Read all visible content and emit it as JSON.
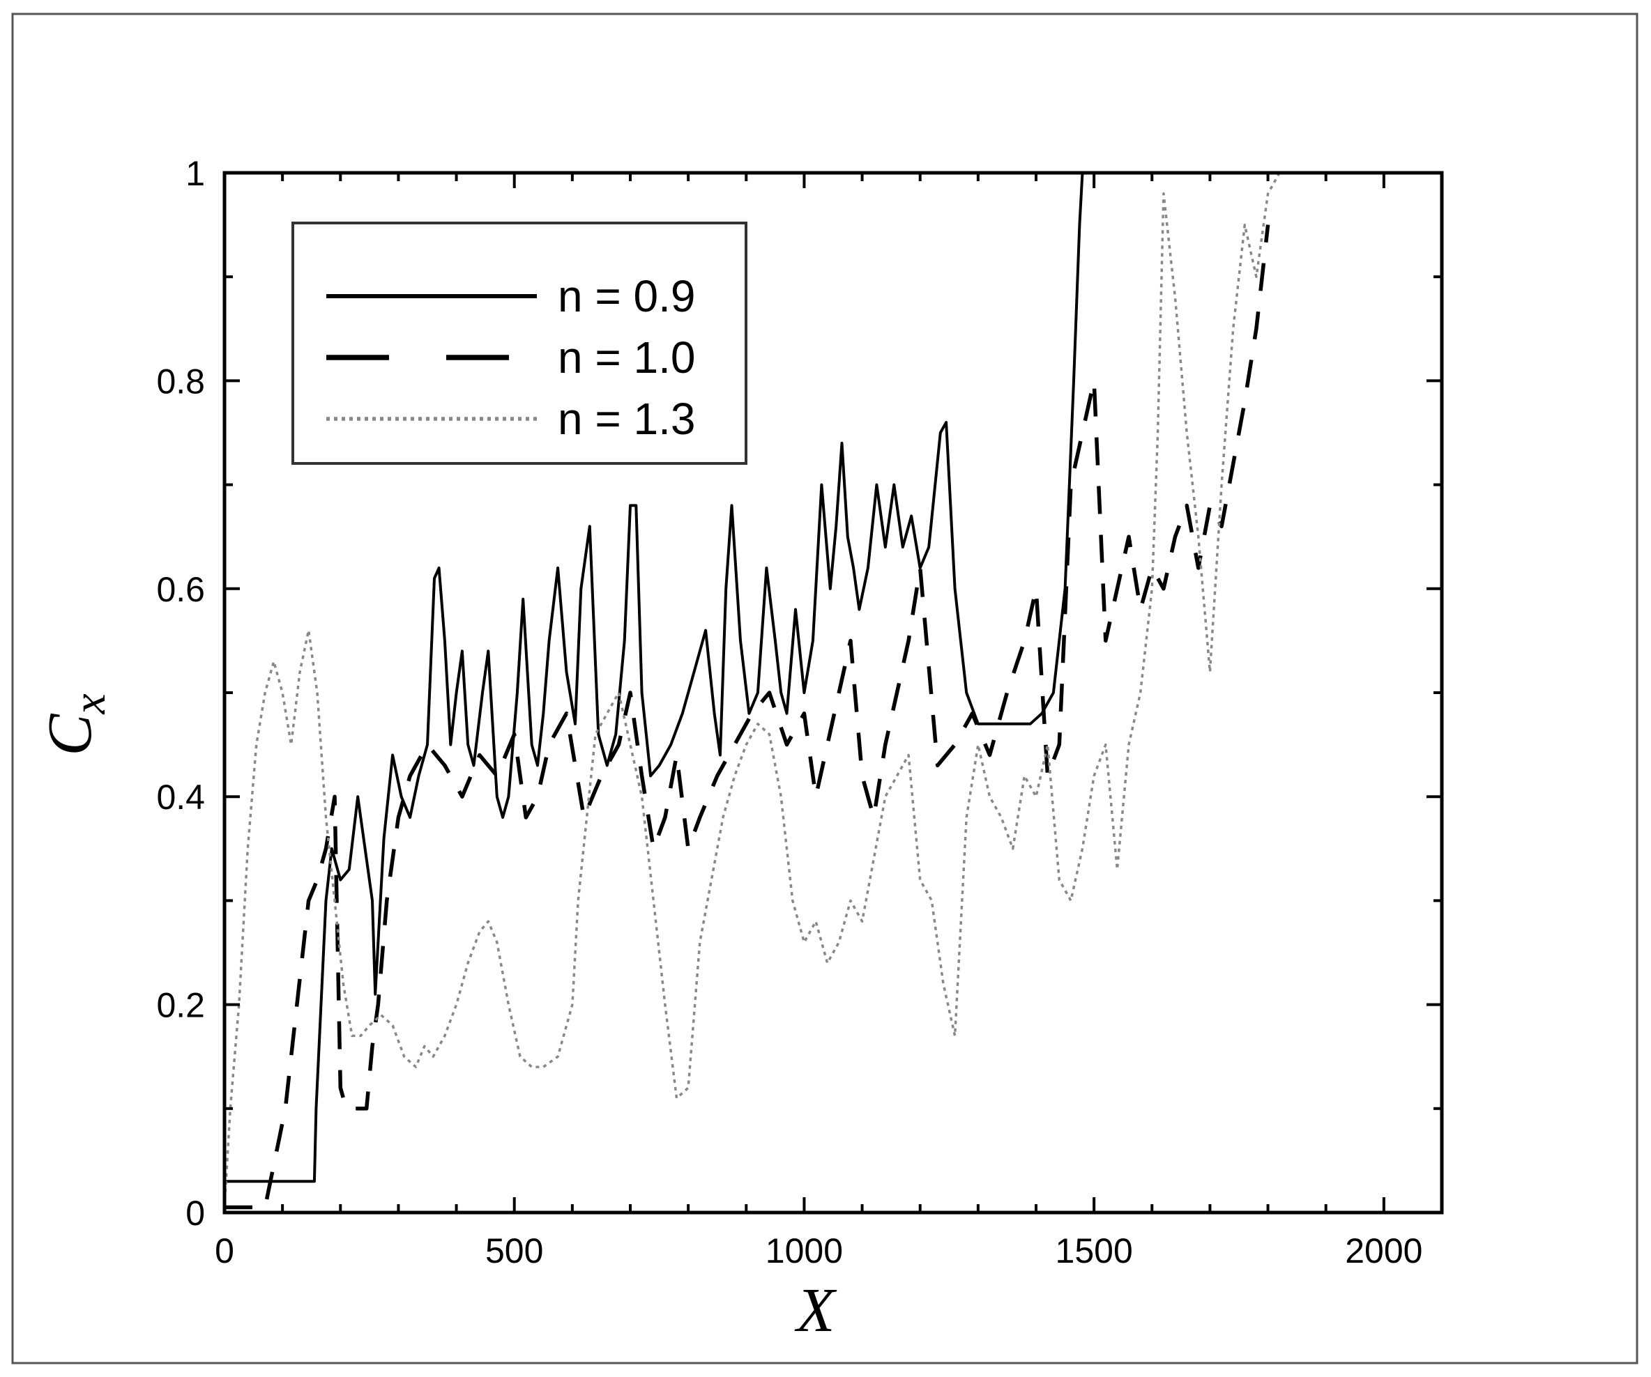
{
  "chart_data": {
    "type": "line",
    "title": "",
    "xlabel": "X",
    "ylabel": "C",
    "ylabel_subscript": "x",
    "xlim": [
      0,
      2100
    ],
    "ylim": [
      0,
      1
    ],
    "xticks": [
      0,
      500,
      1000,
      1500,
      2000
    ],
    "xtick_labels": [
      "0",
      "500",
      "1000",
      "1500",
      "2000"
    ],
    "yticks": [
      0,
      0.2,
      0.4,
      0.6,
      0.8,
      1
    ],
    "ytick_labels": [
      "0",
      "0.2",
      "0.4",
      "0.6",
      "0.8",
      "1"
    ],
    "grid": false,
    "legend_position": "top-left",
    "series": [
      {
        "name": "n = 0.9",
        "style": "solid",
        "color": "#000000",
        "x": [
          0,
          155,
          158,
          175,
          185,
          200,
          215,
          230,
          240,
          255,
          260,
          275,
          290,
          305,
          320,
          335,
          350,
          362,
          370,
          380,
          390,
          400,
          410,
          420,
          430,
          445,
          455,
          470,
          480,
          490,
          505,
          515,
          530,
          540,
          550,
          560,
          575,
          590,
          605,
          615,
          630,
          645,
          660,
          675,
          690,
          700,
          710,
          720,
          735,
          750,
          770,
          790,
          810,
          830,
          845,
          855,
          865,
          875,
          890,
          905,
          920,
          935,
          950,
          960,
          970,
          985,
          1000,
          1015,
          1030,
          1045,
          1055,
          1065,
          1075,
          1085,
          1095,
          1110,
          1125,
          1140,
          1155,
          1170,
          1185,
          1200,
          1215,
          1235,
          1245,
          1260,
          1280,
          1300,
          1330,
          1360,
          1390,
          1410,
          1430,
          1450,
          1465,
          1475,
          1480
        ],
        "y": [
          0.03,
          0.03,
          0.1,
          0.3,
          0.35,
          0.32,
          0.33,
          0.4,
          0.36,
          0.3,
          0.21,
          0.36,
          0.44,
          0.4,
          0.38,
          0.42,
          0.45,
          0.61,
          0.62,
          0.55,
          0.45,
          0.5,
          0.54,
          0.45,
          0.43,
          0.5,
          0.54,
          0.4,
          0.38,
          0.4,
          0.5,
          0.59,
          0.45,
          0.43,
          0.48,
          0.55,
          0.62,
          0.52,
          0.47,
          0.6,
          0.66,
          0.46,
          0.43,
          0.46,
          0.55,
          0.68,
          0.68,
          0.5,
          0.42,
          0.43,
          0.45,
          0.48,
          0.52,
          0.56,
          0.48,
          0.44,
          0.6,
          0.68,
          0.55,
          0.48,
          0.5,
          0.62,
          0.55,
          0.5,
          0.48,
          0.58,
          0.5,
          0.55,
          0.7,
          0.6,
          0.66,
          0.74,
          0.65,
          0.62,
          0.58,
          0.62,
          0.7,
          0.64,
          0.7,
          0.64,
          0.67,
          0.62,
          0.64,
          0.75,
          0.76,
          0.6,
          0.5,
          0.47,
          0.47,
          0.47,
          0.47,
          0.48,
          0.5,
          0.6,
          0.8,
          0.95,
          1.0
        ]
      },
      {
        "name": "n = 1.0",
        "style": "dashed",
        "color": "#000000",
        "x": [
          0,
          70,
          105,
          125,
          145,
          160,
          175,
          190,
          200,
          210,
          225,
          245,
          255,
          265,
          280,
          300,
          320,
          350,
          380,
          410,
          440,
          470,
          500,
          520,
          540,
          560,
          590,
          620,
          650,
          680,
          700,
          720,
          740,
          760,
          780,
          800,
          820,
          850,
          880,
          910,
          940,
          970,
          1000,
          1020,
          1040,
          1060,
          1080,
          1100,
          1120,
          1140,
          1160,
          1180,
          1200,
          1230,
          1260,
          1290,
          1320,
          1350,
          1380,
          1400,
          1420,
          1440,
          1460,
          1480,
          1500,
          1520,
          1540,
          1560,
          1580,
          1600,
          1620,
          1640,
          1660,
          1680,
          1700,
          1720,
          1740,
          1760,
          1780,
          1800
        ],
        "y": [
          0.005,
          0.005,
          0.1,
          0.2,
          0.3,
          0.32,
          0.35,
          0.4,
          0.12,
          0.1,
          0.1,
          0.1,
          0.16,
          0.2,
          0.3,
          0.38,
          0.42,
          0.45,
          0.43,
          0.4,
          0.44,
          0.42,
          0.46,
          0.38,
          0.4,
          0.45,
          0.48,
          0.38,
          0.42,
          0.45,
          0.5,
          0.42,
          0.35,
          0.38,
          0.44,
          0.35,
          0.38,
          0.42,
          0.45,
          0.48,
          0.5,
          0.45,
          0.48,
          0.4,
          0.45,
          0.5,
          0.55,
          0.42,
          0.38,
          0.45,
          0.5,
          0.55,
          0.62,
          0.43,
          0.45,
          0.48,
          0.44,
          0.5,
          0.55,
          0.6,
          0.42,
          0.45,
          0.7,
          0.75,
          0.8,
          0.55,
          0.6,
          0.65,
          0.58,
          0.62,
          0.6,
          0.65,
          0.68,
          0.62,
          0.68,
          0.66,
          0.72,
          0.78,
          0.85,
          0.95
        ]
      },
      {
        "name": "n = 1.3",
        "style": "dotted",
        "color": "#888888",
        "x": [
          0,
          10,
          25,
          40,
          55,
          70,
          85,
          100,
          115,
          130,
          145,
          160,
          175,
          190,
          205,
          220,
          235,
          250,
          270,
          290,
          310,
          330,
          345,
          360,
          380,
          400,
          420,
          440,
          455,
          470,
          490,
          510,
          530,
          550,
          575,
          600,
          610,
          625,
          640,
          660,
          680,
          700,
          720,
          740,
          760,
          780,
          800,
          820,
          840,
          860,
          880,
          900,
          920,
          940,
          960,
          980,
          1000,
          1020,
          1040,
          1060,
          1080,
          1100,
          1120,
          1140,
          1160,
          1180,
          1200,
          1220,
          1240,
          1260,
          1280,
          1300,
          1320,
          1340,
          1360,
          1380,
          1400,
          1420,
          1440,
          1460,
          1480,
          1500,
          1520,
          1540,
          1560,
          1580,
          1600,
          1610,
          1620,
          1640,
          1660,
          1680,
          1700,
          1720,
          1740,
          1760,
          1780,
          1800,
          1820
        ],
        "y": [
          0.005,
          0.1,
          0.2,
          0.35,
          0.45,
          0.5,
          0.53,
          0.5,
          0.45,
          0.52,
          0.56,
          0.5,
          0.38,
          0.3,
          0.22,
          0.17,
          0.17,
          0.18,
          0.19,
          0.18,
          0.15,
          0.14,
          0.16,
          0.15,
          0.17,
          0.2,
          0.24,
          0.27,
          0.28,
          0.26,
          0.2,
          0.15,
          0.14,
          0.14,
          0.15,
          0.2,
          0.3,
          0.38,
          0.46,
          0.48,
          0.5,
          0.45,
          0.4,
          0.3,
          0.2,
          0.11,
          0.12,
          0.26,
          0.32,
          0.38,
          0.42,
          0.45,
          0.47,
          0.46,
          0.4,
          0.3,
          0.26,
          0.28,
          0.24,
          0.26,
          0.3,
          0.28,
          0.34,
          0.4,
          0.42,
          0.44,
          0.32,
          0.3,
          0.22,
          0.17,
          0.38,
          0.45,
          0.4,
          0.38,
          0.35,
          0.42,
          0.4,
          0.45,
          0.32,
          0.3,
          0.35,
          0.42,
          0.45,
          0.33,
          0.45,
          0.5,
          0.6,
          0.75,
          0.98,
          0.88,
          0.75,
          0.65,
          0.52,
          0.7,
          0.85,
          0.95,
          0.9,
          0.98,
          1.0
        ]
      }
    ]
  }
}
